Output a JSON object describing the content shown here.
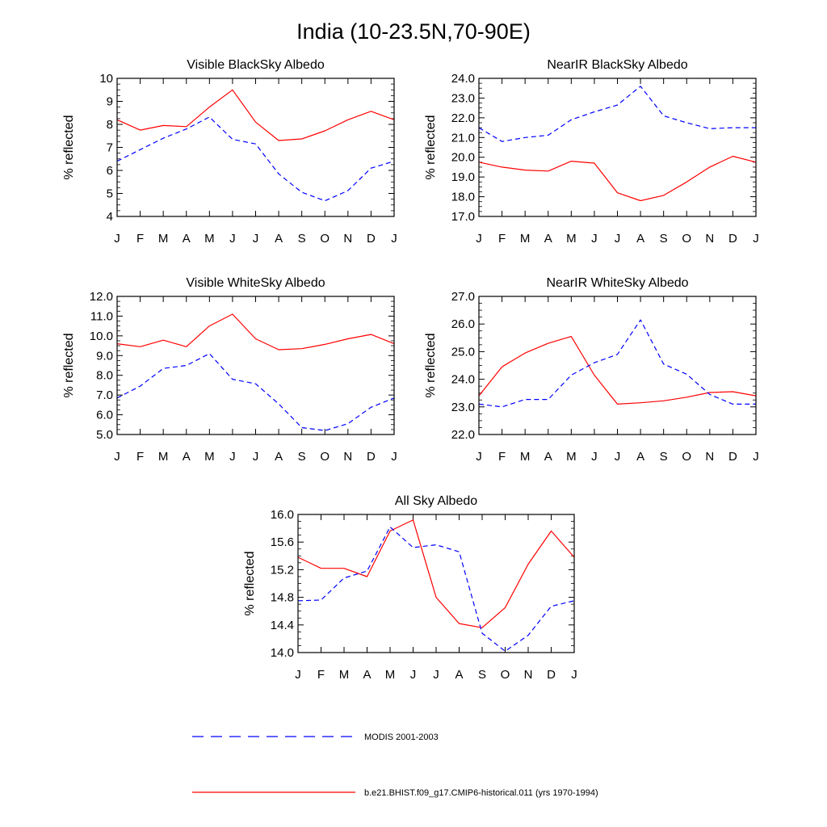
{
  "figure": {
    "title": "India (10-23.5N,70-90E)"
  },
  "legend": {
    "placement": "bottom",
    "entries": [
      {
        "label": "MODIS 2001-2003",
        "color": "#0000ff",
        "dash": "dashed"
      },
      {
        "label": "b.e21.BHIST.f09_g17.CMIP6-historical.011 (yrs 1970-1994)",
        "color": "#ff0000",
        "dash": "solid"
      }
    ]
  },
  "chart_data": [
    {
      "type": "line",
      "title": "Visible BlackSky Albedo",
      "ylabel": "% reflected",
      "xlabel": "",
      "x": [
        "J",
        "F",
        "M",
        "A",
        "M",
        "J",
        "J",
        "A",
        "S",
        "O",
        "N",
        "D",
        "J"
      ],
      "ylim": [
        4,
        10
      ],
      "yticks": [
        "4",
        "5",
        "6",
        "7",
        "8",
        "9",
        "10"
      ],
      "series": [
        {
          "color": "#ff0000",
          "dash": "solid",
          "values": [
            8.2,
            7.75,
            7.95,
            7.9,
            8.75,
            9.5,
            8.1,
            7.3,
            7.37,
            7.72,
            8.2,
            8.57,
            8.2
          ]
        },
        {
          "color": "#0000ff",
          "dash": "dashed",
          "values": [
            6.4,
            6.9,
            7.4,
            7.8,
            8.32,
            7.35,
            7.15,
            5.85,
            5.05,
            4.68,
            5.12,
            6.1,
            6.4
          ]
        }
      ]
    },
    {
      "type": "line",
      "title": "NearIR BlackSky Albedo",
      "ylabel": "% reflected",
      "xlabel": "",
      "x": [
        "J",
        "F",
        "M",
        "A",
        "M",
        "J",
        "J",
        "A",
        "S",
        "O",
        "N",
        "D",
        "J"
      ],
      "ylim": [
        17,
        24
      ],
      "yticks": [
        "17.0",
        "18.0",
        "19.0",
        "20.0",
        "21.0",
        "22.0",
        "23.0",
        "24.0"
      ],
      "series": [
        {
          "color": "#ff0000",
          "dash": "solid",
          "values": [
            19.75,
            19.5,
            19.35,
            19.3,
            19.8,
            19.7,
            18.2,
            17.8,
            18.07,
            18.75,
            19.5,
            20.05,
            19.75
          ]
        },
        {
          "color": "#0000ff",
          "dash": "dashed",
          "values": [
            21.5,
            20.8,
            21.0,
            21.12,
            21.9,
            22.3,
            22.65,
            23.6,
            22.1,
            21.75,
            21.45,
            21.5,
            21.5
          ]
        }
      ]
    },
    {
      "type": "line",
      "title": "Visible WhiteSky Albedo",
      "ylabel": "% reflected",
      "xlabel": "",
      "x": [
        "J",
        "F",
        "M",
        "A",
        "M",
        "J",
        "J",
        "A",
        "S",
        "O",
        "N",
        "D",
        "J"
      ],
      "ylim": [
        5,
        12
      ],
      "yticks": [
        "5.0",
        "6.0",
        "7.0",
        "8.0",
        "9.0",
        "10.0",
        "11.0",
        "12.0"
      ],
      "series": [
        {
          "color": "#ff0000",
          "dash": "solid",
          "values": [
            9.6,
            9.45,
            9.78,
            9.45,
            10.5,
            11.1,
            9.85,
            9.3,
            9.35,
            9.57,
            9.85,
            10.07,
            9.6
          ]
        },
        {
          "color": "#0000ff",
          "dash": "dashed",
          "values": [
            6.85,
            7.45,
            8.35,
            8.5,
            9.1,
            7.8,
            7.57,
            6.55,
            5.35,
            5.2,
            5.55,
            6.38,
            6.85
          ]
        }
      ]
    },
    {
      "type": "line",
      "title": "NearIR WhiteSky Albedo",
      "ylabel": "% reflected",
      "xlabel": "",
      "x": [
        "J",
        "F",
        "M",
        "A",
        "M",
        "J",
        "J",
        "A",
        "S",
        "O",
        "N",
        "D",
        "J"
      ],
      "ylim": [
        22,
        27
      ],
      "yticks": [
        "22.0",
        "23.0",
        "24.0",
        "25.0",
        "26.0",
        "27.0"
      ],
      "series": [
        {
          "color": "#ff0000",
          "dash": "solid",
          "values": [
            23.4,
            24.45,
            24.95,
            25.3,
            25.55,
            24.15,
            23.1,
            23.15,
            23.22,
            23.35,
            23.52,
            23.55,
            23.4
          ]
        },
        {
          "color": "#0000ff",
          "dash": "dashed",
          "values": [
            23.1,
            23.0,
            23.27,
            23.27,
            24.15,
            24.6,
            24.9,
            26.15,
            24.55,
            24.18,
            23.45,
            23.1,
            23.1
          ]
        }
      ]
    },
    {
      "type": "line",
      "title": "All Sky Albedo",
      "ylabel": "% reflected",
      "xlabel": "",
      "x": [
        "J",
        "F",
        "M",
        "A",
        "M",
        "J",
        "J",
        "A",
        "S",
        "O",
        "N",
        "D",
        "J"
      ],
      "ylim": [
        14.0,
        16.0
      ],
      "yticks": [
        "14.0",
        "14.4",
        "14.8",
        "15.2",
        "15.6",
        "16.0"
      ],
      "series": [
        {
          "color": "#ff0000",
          "dash": "solid",
          "values": [
            15.38,
            15.22,
            15.22,
            15.1,
            15.76,
            15.92,
            14.8,
            14.42,
            14.36,
            14.65,
            15.28,
            15.76,
            15.38
          ]
        },
        {
          "color": "#0000ff",
          "dash": "dashed",
          "values": [
            14.75,
            14.76,
            15.08,
            15.18,
            15.82,
            15.52,
            15.56,
            15.46,
            14.28,
            14.02,
            14.25,
            14.67,
            14.75
          ]
        }
      ]
    }
  ]
}
